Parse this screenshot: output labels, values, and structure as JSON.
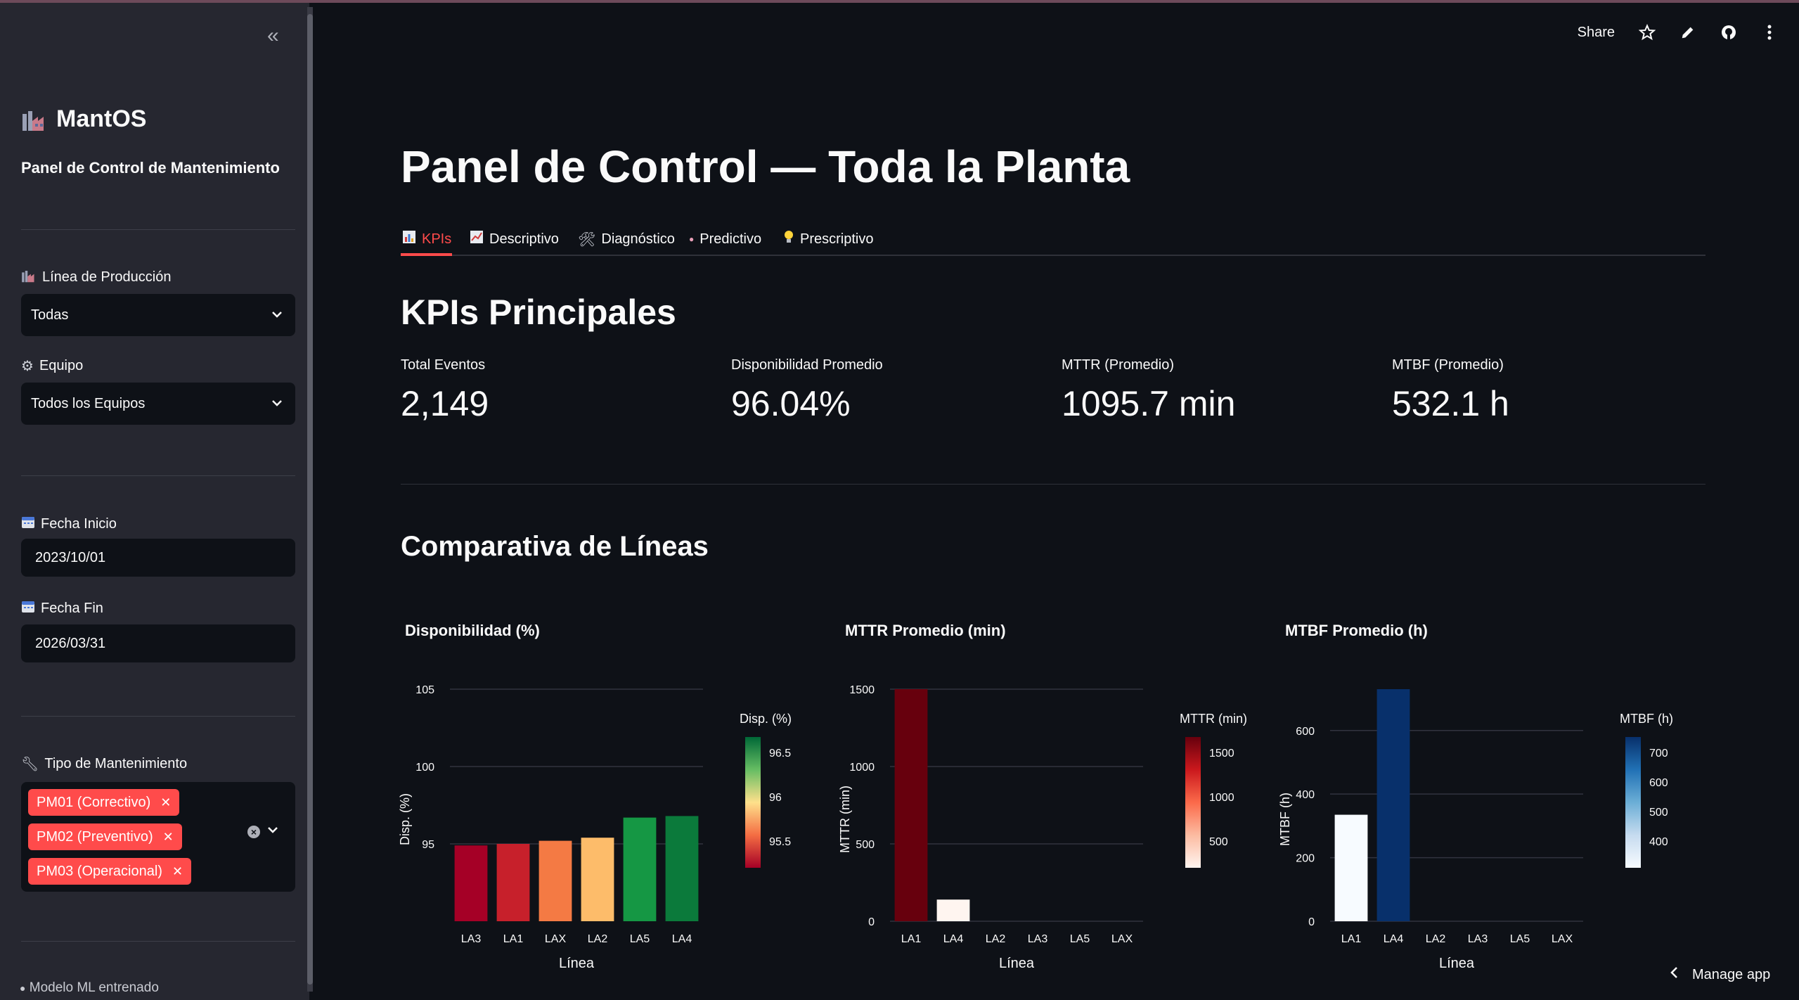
{
  "sidebar": {
    "brand": "MantOS",
    "subtitle": "Panel de Control de Mantenimiento",
    "linea_label": "Línea de Producción",
    "linea_value": "Todas",
    "equipo_label": "Equipo",
    "equipo_value": "Todos los Equipos",
    "fecha_inicio_label": "Fecha Inicio",
    "fecha_inicio_value": "2023/10/01",
    "fecha_fin_label": "Fecha Fin",
    "fecha_fin_value": "2026/03/31",
    "tipo_label": "Tipo de Mantenimiento",
    "tipo_tags": [
      "PM01 (Correctivo)",
      "PM02 (Preventivo)",
      "PM03 (Operacional)"
    ],
    "footnote": "Modelo ML entrenado"
  },
  "topbar": {
    "share": "Share"
  },
  "page_title": "Panel de Control — Toda la Planta",
  "tabs": [
    "KPIs",
    "Descriptivo",
    "Diagnóstico",
    "Predictivo",
    "Prescriptivo"
  ],
  "kpi_title": "KPIs Principales",
  "metrics": [
    {
      "label": "Total Eventos",
      "value": "2,149"
    },
    {
      "label": "Disponibilidad Promedio",
      "value": "96.04%"
    },
    {
      "label": "MTTR (Promedio)",
      "value": "1095.7 min"
    },
    {
      "label": "MTBF (Promedio)",
      "value": "532.1 h"
    }
  ],
  "comparativa_title": "Comparativa de Líneas",
  "manage_app": "Manage app",
  "colors": {
    "accent": "#ff4b4b",
    "bg": "#0e1117",
    "sidebar": "#262730"
  },
  "chart_data": [
    {
      "type": "bar",
      "title": "Disponibilidad (%)",
      "xlabel": "Línea",
      "ylabel": "Disp. (%)",
      "categories": [
        "LA3",
        "LA1",
        "LAX",
        "LA2",
        "LA5",
        "LA4"
      ],
      "values": [
        94.9,
        95.0,
        95.2,
        95.4,
        96.7,
        96.8
      ],
      "colors": [
        "#a50026",
        "#c7202b",
        "#f47a44",
        "#fdbc6a",
        "#159744",
        "#0b7a3b"
      ],
      "ylim": [
        90,
        105
      ],
      "yticks": [
        95,
        100,
        105
      ],
      "colorbar": {
        "title": "Disp. (%)",
        "ticks": [
          "96.5",
          "96",
          "95.5"
        ],
        "colors": [
          "#006837",
          "#66bd63",
          "#fee08b",
          "#f46d43",
          "#a50026"
        ]
      }
    },
    {
      "type": "bar",
      "title": "MTTR Promedio (min)",
      "xlabel": "Línea",
      "ylabel": "MTTR (min)",
      "categories": [
        "LA1",
        "LA4",
        "LA2",
        "LA3",
        "LA5",
        "LAX"
      ],
      "values": [
        1500,
        140,
        0,
        0,
        0,
        0
      ],
      "colors": [
        "#67000d",
        "#fff5f0",
        "#fff5f0",
        "#fff5f0",
        "#fff5f0",
        "#fff5f0"
      ],
      "ylim": [
        0,
        1500
      ],
      "yticks": [
        0,
        500,
        1000,
        1500
      ],
      "colorbar": {
        "title": "MTTR (min)",
        "ticks": [
          "1500",
          "1000",
          "500"
        ],
        "colors": [
          "#67000d",
          "#cb181d",
          "#fb6a4a",
          "#fcbba1",
          "#fff5f0"
        ]
      }
    },
    {
      "type": "bar",
      "title": "MTBF Promedio (h)",
      "xlabel": "Línea",
      "ylabel": "MTBF (h)",
      "categories": [
        "LA1",
        "LA4",
        "LA2",
        "LA3",
        "LA5",
        "LAX"
      ],
      "values": [
        335,
        730,
        0,
        0,
        0,
        0
      ],
      "colors": [
        "#f7fbff",
        "#08306b",
        "#f7fbff",
        "#f7fbff",
        "#f7fbff",
        "#f7fbff"
      ],
      "ylim": [
        0,
        730
      ],
      "yticks": [
        0,
        200,
        400,
        600
      ],
      "colorbar": {
        "title": "MTBF (h)",
        "ticks": [
          "700",
          "600",
          "500",
          "400"
        ],
        "colors": [
          "#08306b",
          "#2171b5",
          "#6baed6",
          "#c6dbef",
          "#f7fbff"
        ]
      }
    }
  ]
}
